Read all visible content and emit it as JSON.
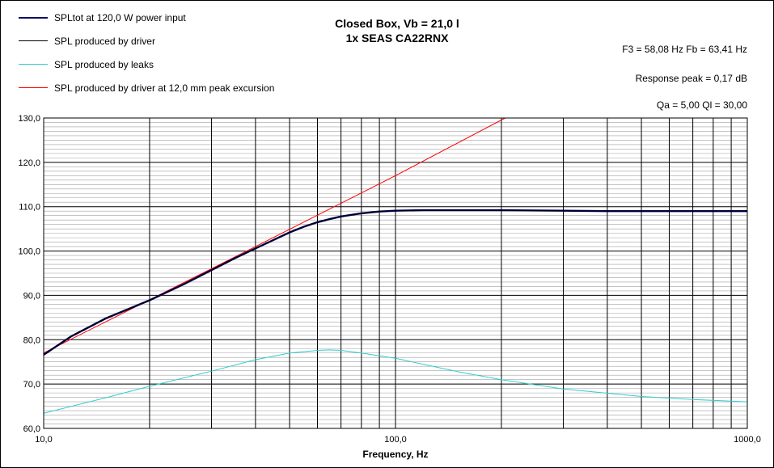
{
  "chart_data": {
    "type": "line",
    "title": "Closed Box, Vb = 21,0 l",
    "subtitle": "1x SEAS CA22RNX",
    "xlabel": "Frequency, Hz",
    "ylabel": "",
    "xscale": "log",
    "xlim": [
      10,
      1000
    ],
    "ylim": [
      60,
      130
    ],
    "x_ticks": [
      10,
      100,
      1000
    ],
    "x_tick_labels": [
      "10,0",
      "100,0",
      "1000,0"
    ],
    "y_ticks": [
      60,
      70,
      80,
      90,
      100,
      110,
      120,
      130
    ],
    "y_tick_labels": [
      "60,0",
      "70,0",
      "80,0",
      "90,0",
      "100,0",
      "110,0",
      "120,0",
      "130,0"
    ],
    "grid": true,
    "legend_position": "top-left",
    "annotations": [
      "F3 = 58,08 Hz  Fb = 63,41 Hz",
      "Response peak = 0,17 dB",
      "Qa = 5,00  Ql = 30,00"
    ],
    "series": [
      {
        "name": "SPLtot at 120,0 W power input",
        "color": "#000066",
        "width": "thick",
        "x": [
          10,
          12,
          15,
          20,
          25,
          30,
          35,
          40,
          45,
          50,
          55,
          60,
          65,
          70,
          80,
          90,
          100,
          120,
          150,
          200,
          300,
          400,
          500,
          700,
          1000
        ],
        "y": [
          76.6,
          80.8,
          84.8,
          88.9,
          92.5,
          95.7,
          98.4,
          100.6,
          102.5,
          104.2,
          105.5,
          106.5,
          107.2,
          107.8,
          108.5,
          108.9,
          109.1,
          109.2,
          109.2,
          109.2,
          109.1,
          109.0,
          109.0,
          109.0,
          109.0
        ]
      },
      {
        "name": "SPL produced by driver",
        "color": "#000000",
        "width": "thin",
        "x": [
          10,
          12,
          15,
          20,
          25,
          30,
          35,
          40,
          45,
          50,
          55,
          60,
          65,
          70,
          80,
          90,
          100,
          120,
          150,
          200,
          300,
          400,
          500,
          700,
          1000
        ],
        "y": [
          76.6,
          80.8,
          84.8,
          88.9,
          92.5,
          95.7,
          98.4,
          100.6,
          102.5,
          104.2,
          105.5,
          106.5,
          107.2,
          107.8,
          108.5,
          108.9,
          109.1,
          109.2,
          109.2,
          109.2,
          109.1,
          109.0,
          109.0,
          109.0,
          109.0
        ]
      },
      {
        "name": "SPL produced by leaks",
        "color": "#33cccc",
        "width": "thin",
        "x": [
          10,
          15,
          20,
          30,
          40,
          50,
          60,
          65,
          70,
          80,
          100,
          150,
          200,
          300,
          500,
          700,
          1000
        ],
        "y": [
          63.4,
          66.9,
          69.5,
          72.9,
          75.5,
          77.0,
          77.6,
          77.7,
          77.6,
          77.0,
          75.8,
          72.8,
          71.0,
          68.9,
          67.2,
          66.5,
          66.0
        ]
      },
      {
        "name": "SPL produced by driver at 12,0 mm peak excursion",
        "color": "#ff0000",
        "width": "thin",
        "x": [
          10,
          20,
          40,
          100,
          205
        ],
        "y": [
          77.0,
          89.0,
          101.0,
          117.0,
          130.0
        ]
      }
    ]
  }
}
